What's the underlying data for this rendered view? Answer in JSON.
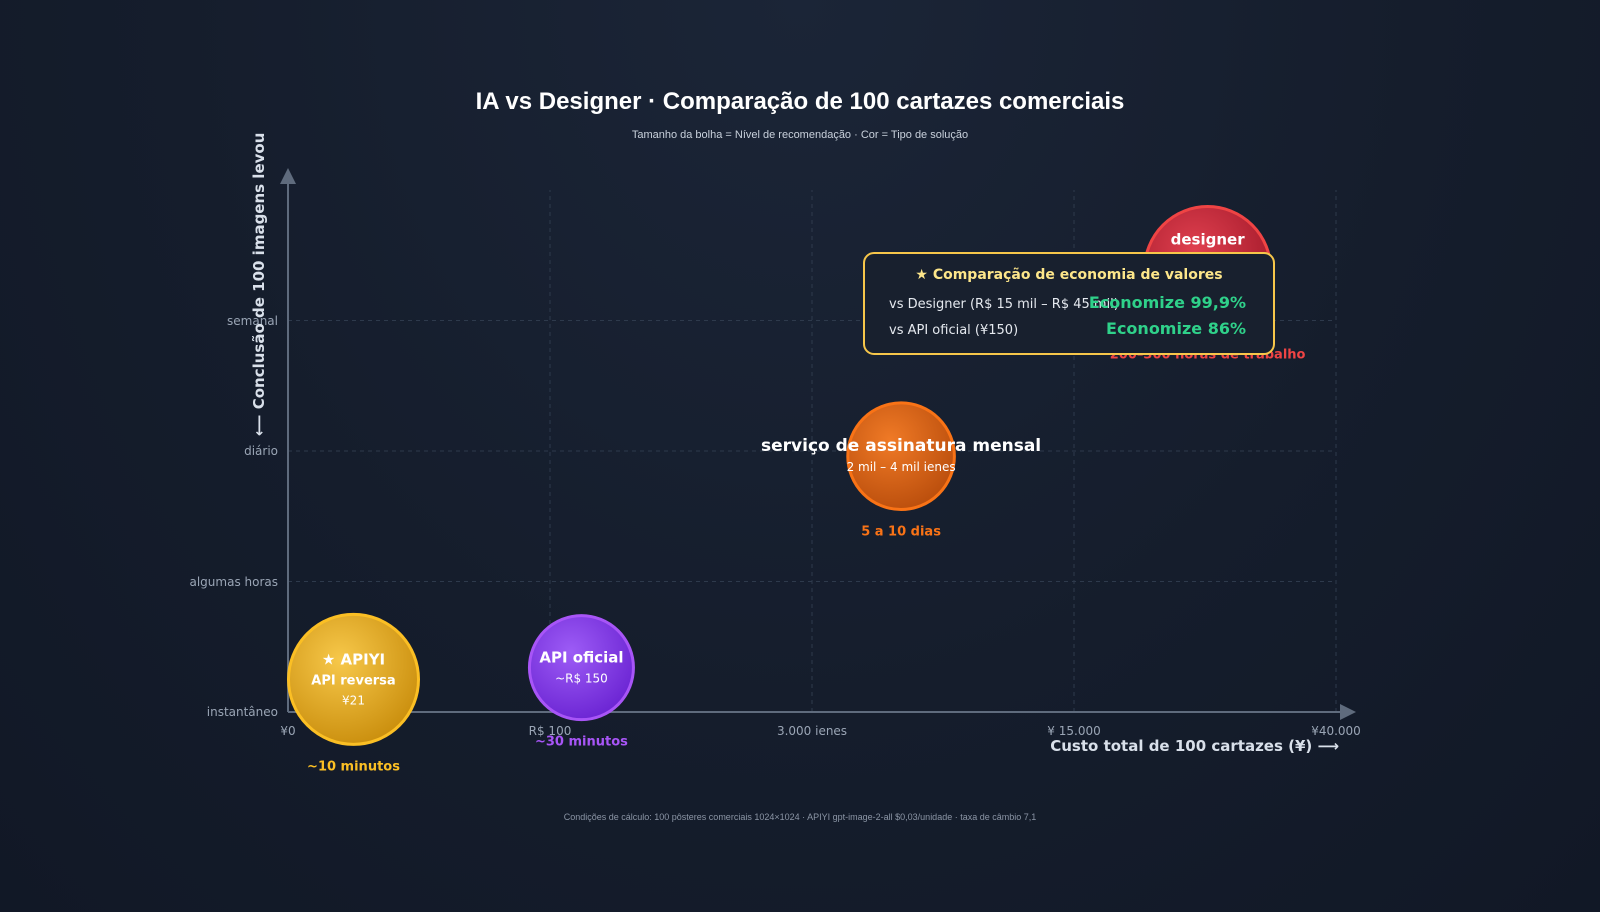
{
  "chart_data": {
    "type": "scatter",
    "title": "IA vs Designer · Comparação de 100 cartazes comerciais",
    "subtitle": "Tamanho da bolha = Nível de recomendação · Cor = Tipo de solução",
    "xlabel": "Custo total de 100 cartazes (¥) ⟶",
    "ylabel": "⟵ Conclusão de 100 imagens levou",
    "x_ticks": [
      "¥0",
      "R$ 100",
      "3.000 ienes",
      "¥ 15.000",
      "¥40.000"
    ],
    "y_ticks": [
      "instantâneo",
      "algumas horas",
      "diário",
      "semanal"
    ],
    "x_scale": "ordinal-log (tick index 0–4)",
    "y_scale": "ordinal (tick index 0–3)",
    "grid": true,
    "footnote": "Condições de cálculo: 100 pôsteres comerciais 1024×1024 · APIYI gpt-image-2-all $0,03/unidade · taxa de câmbio 7,1",
    "bubbles": [
      {
        "name": "★ APIYI",
        "sublabel": "API reversa",
        "cost_label": "¥21",
        "time_label": "~10 minutos",
        "x": 0.25,
        "y": 0.25,
        "size": 1.0,
        "color": "#f1b51f",
        "border": "#fbbf24",
        "text_color": "#fbbf24"
      },
      {
        "name": "API oficial",
        "sublabel": "",
        "cost_label": "~R$ 150",
        "time_label": "~30 minutos",
        "x": 1.12,
        "y": 0.34,
        "size": 0.8,
        "color": "#8b3cf0",
        "border": "#a855f7",
        "text_color": "#a855f7"
      },
      {
        "name": "serviço de assinatura mensal",
        "sublabel": "",
        "cost_label": "2 mil – 4 mil ienes",
        "time_label": "5 a 10 dias",
        "x": 2.34,
        "y": 1.96,
        "size": 0.82,
        "color": "#e2681a",
        "border": "#f97316",
        "text_color": "#f97316"
      },
      {
        "name": "designer",
        "sublabel": "",
        "cost_label": "",
        "time_label": "200–300 horas de trabalho",
        "x": 3.51,
        "y": 3.39,
        "size": 0.97,
        "color": "#c6283a",
        "border": "#ef4444",
        "text_color": "#ef4444"
      }
    ]
  },
  "comparison_box": {
    "title": "★ Comparação de economia de valores",
    "rows": [
      {
        "label": "vs Designer (R$ 15 mil – R$ 45 mil)",
        "value": "Economize 99,9%"
      },
      {
        "label": "vs API oficial (¥150)",
        "value": "Economize 86%"
      }
    ]
  }
}
